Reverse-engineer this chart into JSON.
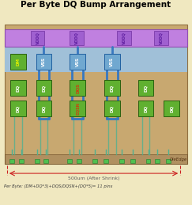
{
  "title": "Per Byte DQ Bump Arrangement",
  "bg_color": "#f0e8c0",
  "main_area_color": "#c8a870",
  "blue_area_color": "#a0c0d8",
  "purple_bar_color": "#c080e0",
  "purple_bar_edge": "#9050b0",
  "green_block_color": "#60b030",
  "green_block_edge": "#2a6010",
  "blue_bump_color": "#70a8d0",
  "blue_bump_edge": "#2060a0",
  "blue_wire_color": "#3878c0",
  "teal_pin_color": "#50b090",
  "red_color": "#cc2020",
  "die_bar_color": "#b09060",
  "die_edge_text_color": "#503010",
  "bottom_text_color": "#606060",
  "formula_text_color": "#404040",
  "title_color": "#000000",
  "vddq_text_color": "#6020a0",
  "dq_text_color": "#ffffff",
  "dqs_text_color": "#cc4010",
  "dm_text_color": "#e0f000",
  "vss_text_color": "#ffffff",
  "figsize": [
    2.43,
    2.59
  ],
  "dpi": 100,
  "bottom_text": "500um (After Shrink)",
  "formula_text": "Per Byte: (DM+DQ*3)+DQS/DQSN+(DQ*5)= 11 pins",
  "die_edge_label": "DieEdge"
}
